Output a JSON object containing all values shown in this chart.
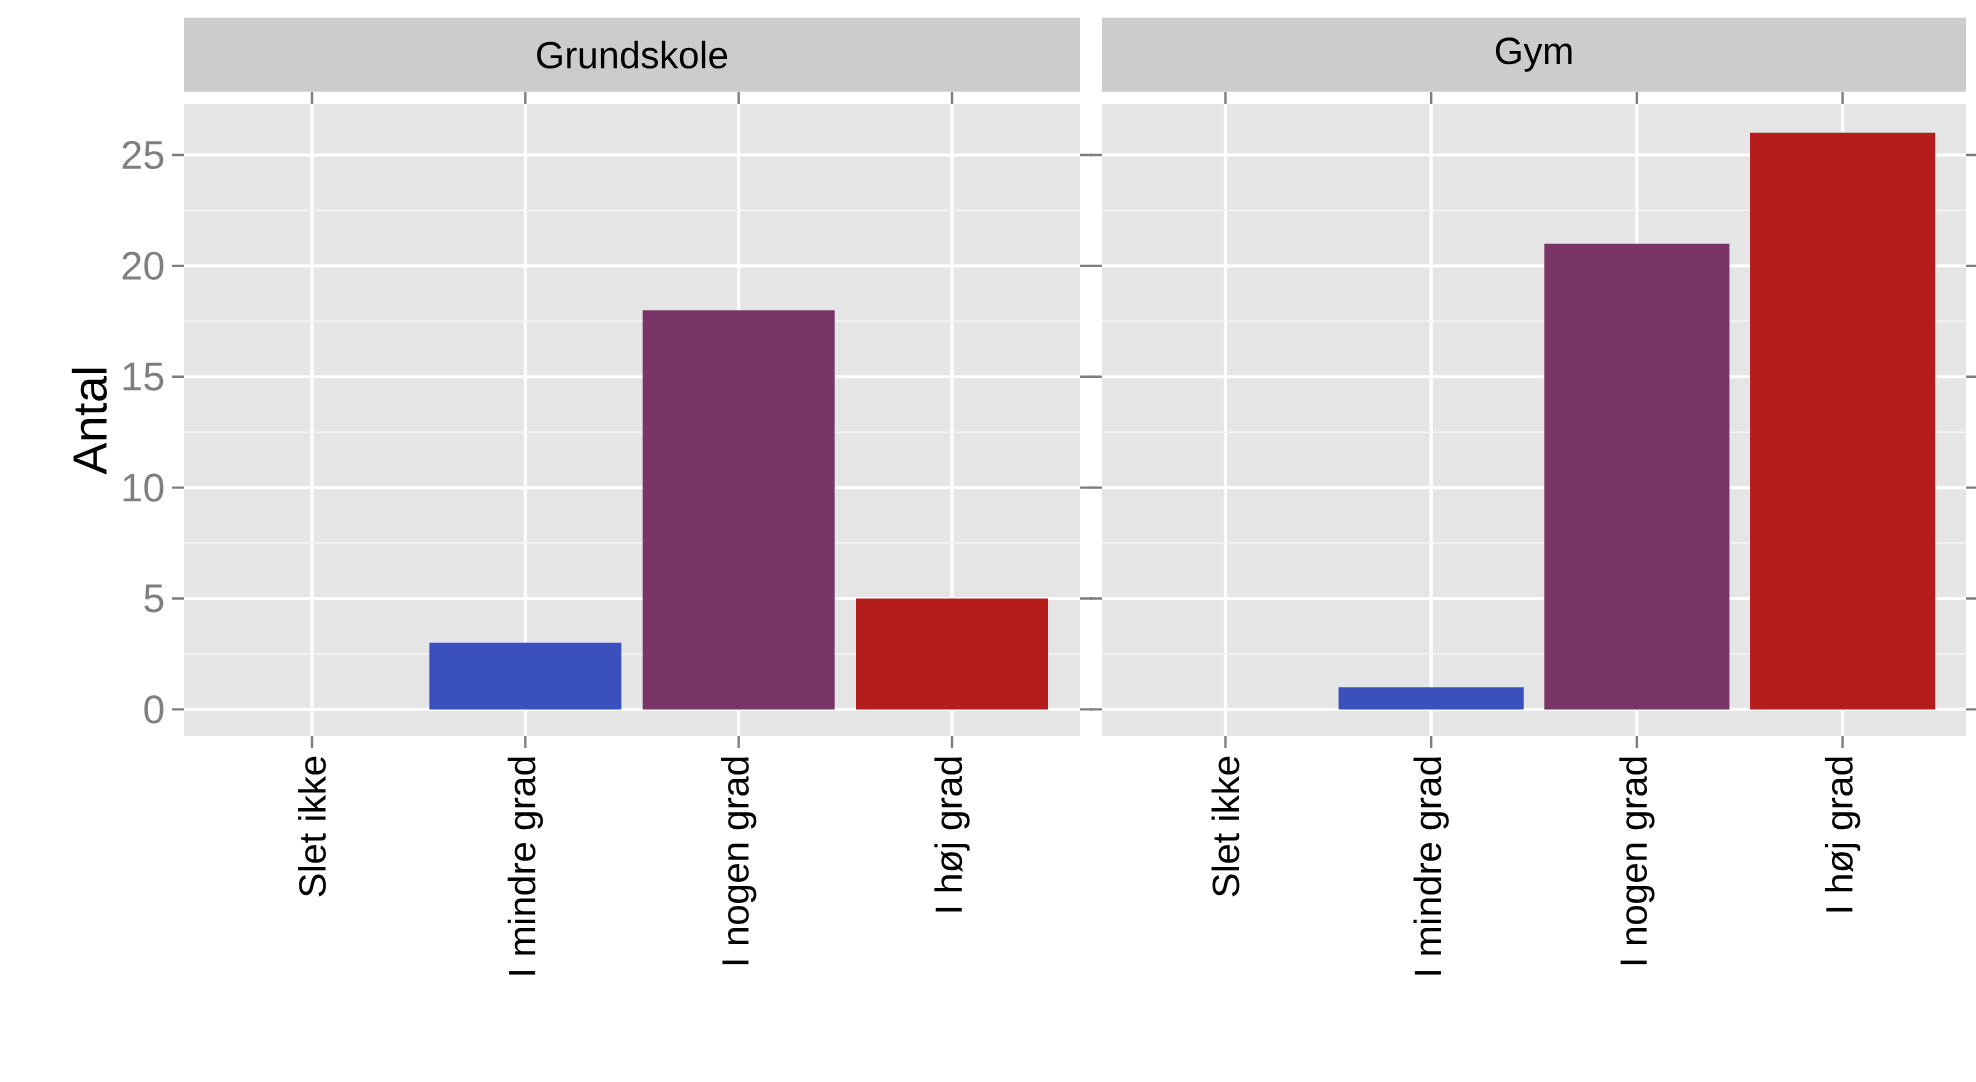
{
  "chart_data": [
    {
      "type": "bar",
      "title": "Grundskole",
      "ylabel": "Antal",
      "categories": [
        "Slet ikke",
        "I mindre grad",
        "I nogen grad",
        "I høj grad"
      ],
      "values": [
        0,
        3,
        18,
        5
      ],
      "colors": [
        "#3a50bc",
        "#3a50bc",
        "#793468",
        "#b51c1c"
      ],
      "ylim": [
        -1.2,
        27.3
      ],
      "yticks": [
        0,
        5,
        10,
        15,
        20,
        25
      ],
      "grid": true
    },
    {
      "type": "bar",
      "title": "Gym",
      "categories": [
        "Slet ikke",
        "I mindre grad",
        "I nogen grad",
        "I høj grad"
      ],
      "values": [
        0,
        1,
        21,
        26
      ],
      "colors": [
        "#3a50bc",
        "#3a50bc",
        "#793468",
        "#b51c1c"
      ],
      "ylim": [
        -1.2,
        27.3
      ],
      "yticks": [
        0,
        5,
        10,
        15,
        20,
        25
      ],
      "grid": true,
      "tick_labels": "x"
    }
  ]
}
